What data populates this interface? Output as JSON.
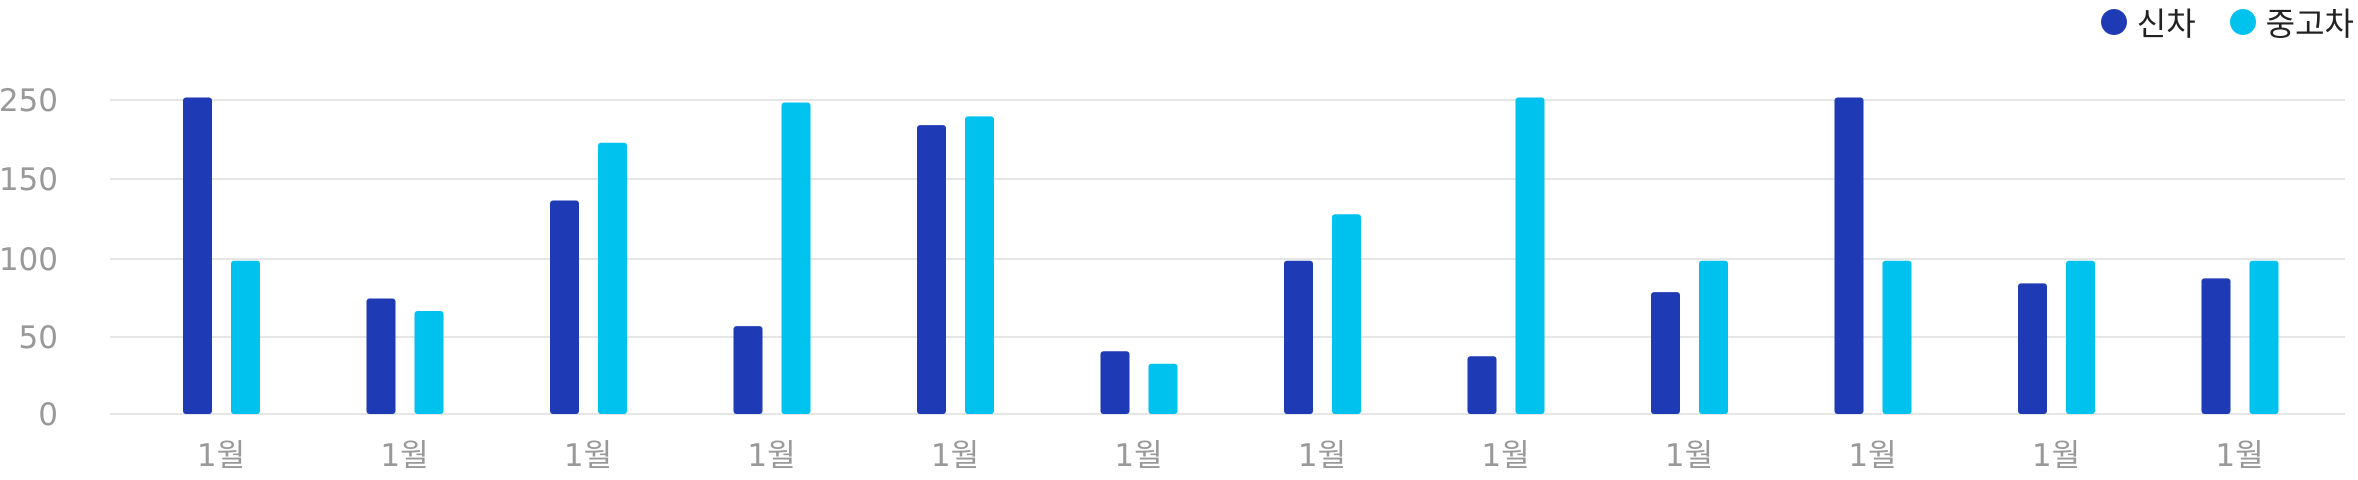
{
  "chart_data": {
    "type": "bar",
    "categories": [
      "1월",
      "1월",
      "1월",
      "1월",
      "1월",
      "1월",
      "1월",
      "1월",
      "1월",
      "1월",
      "1월",
      "1월"
    ],
    "series": [
      {
        "name": "신차",
        "color": "#1f3ab5",
        "values": [
          252,
          92,
          170,
          70,
          230,
          50,
          122,
          46,
          97,
          252,
          104,
          108
        ]
      },
      {
        "name": "중고차",
        "color": "#00c2ef",
        "values": [
          122,
          82,
          216,
          248,
          237,
          40,
          159,
          252,
          122,
          122,
          122,
          122
        ]
      }
    ],
    "y_ticks": [
      "0",
      "50",
      "100",
      "150",
      "250"
    ],
    "grid": true,
    "legend_position": "top-right",
    "title": "",
    "xlabel": "",
    "ylabel": ""
  }
}
